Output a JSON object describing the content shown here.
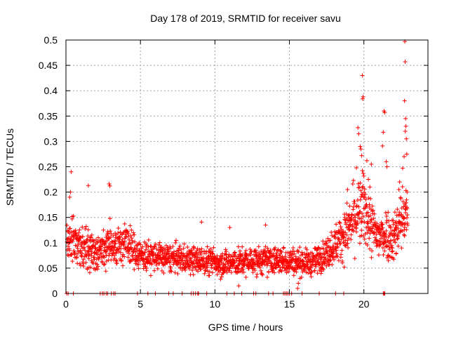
{
  "chart_data": {
    "type": "scatter",
    "title": "Day 178 of 2019, SRMTID for receiver savu",
    "xlabel": "GPS time / hours",
    "ylabel": "SRMTID / TECUs",
    "xlim": [
      0,
      24.3
    ],
    "ylim": [
      0,
      0.5
    ],
    "grid": true,
    "marker": "+",
    "color": "#ff0000",
    "x_ticks": [
      0,
      5,
      10,
      15,
      20
    ],
    "x_tick_labels": [
      "0",
      "5",
      "10",
      "15",
      "20"
    ],
    "y_ticks": [
      0,
      0.05,
      0.1,
      0.15,
      0.2,
      0.25,
      0.3,
      0.35,
      0.4,
      0.45,
      0.5
    ],
    "y_tick_labels": [
      "0",
      "0.05",
      "0.1",
      "0.15",
      "0.2",
      "0.25",
      "0.3",
      "0.35",
      "0.4",
      "0.45",
      "0.5"
    ],
    "trend": [
      {
        "hour": 0.0,
        "center": 0.095,
        "spread": 0.03
      },
      {
        "hour": 0.5,
        "center": 0.11,
        "spread": 0.035
      },
      {
        "hour": 1.0,
        "center": 0.09,
        "spread": 0.035
      },
      {
        "hour": 2.0,
        "center": 0.08,
        "spread": 0.03
      },
      {
        "hour": 3.0,
        "center": 0.095,
        "spread": 0.03
      },
      {
        "hour": 4.0,
        "center": 0.1,
        "spread": 0.03
      },
      {
        "hour": 5.0,
        "center": 0.075,
        "spread": 0.025
      },
      {
        "hour": 7.0,
        "center": 0.07,
        "spread": 0.022
      },
      {
        "hour": 9.0,
        "center": 0.065,
        "spread": 0.022
      },
      {
        "hour": 11.0,
        "center": 0.06,
        "spread": 0.022
      },
      {
        "hour": 13.0,
        "center": 0.065,
        "spread": 0.022
      },
      {
        "hour": 15.0,
        "center": 0.065,
        "spread": 0.022
      },
      {
        "hour": 16.5,
        "center": 0.06,
        "spread": 0.02
      },
      {
        "hour": 17.5,
        "center": 0.08,
        "spread": 0.025
      },
      {
        "hour": 18.5,
        "center": 0.11,
        "spread": 0.035
      },
      {
        "hour": 19.5,
        "center": 0.15,
        "spread": 0.05
      },
      {
        "hour": 20.0,
        "center": 0.17,
        "spread": 0.06
      },
      {
        "hour": 20.5,
        "center": 0.13,
        "spread": 0.045
      },
      {
        "hour": 21.0,
        "center": 0.11,
        "spread": 0.04
      },
      {
        "hour": 21.5,
        "center": 0.12,
        "spread": 0.04
      },
      {
        "hour": 22.0,
        "center": 0.11,
        "spread": 0.04
      },
      {
        "hour": 22.5,
        "center": 0.15,
        "spread": 0.05
      },
      {
        "hour": 22.9,
        "center": 0.15,
        "spread": 0.05
      }
    ],
    "outliers": [
      {
        "x": 0.35,
        "y": 0.24
      },
      {
        "x": 0.3,
        "y": 0.2
      },
      {
        "x": 0.25,
        "y": 0.19
      },
      {
        "x": 1.5,
        "y": 0.213
      },
      {
        "x": 2.9,
        "y": 0.216
      },
      {
        "x": 2.95,
        "y": 0.212
      },
      {
        "x": 9.1,
        "y": 0.141
      },
      {
        "x": 11.0,
        "y": 0.13
      },
      {
        "x": 13.4,
        "y": 0.135
      },
      {
        "x": 15.6,
        "y": 0.02
      },
      {
        "x": 15.55,
        "y": 0.01
      },
      {
        "x": 11.6,
        "y": 0.015
      },
      {
        "x": 19.6,
        "y": 0.327
      },
      {
        "x": 19.65,
        "y": 0.315
      },
      {
        "x": 19.75,
        "y": 0.29
      },
      {
        "x": 19.8,
        "y": 0.285
      },
      {
        "x": 19.85,
        "y": 0.272
      },
      {
        "x": 19.9,
        "y": 0.43
      },
      {
        "x": 19.95,
        "y": 0.388
      },
      {
        "x": 19.92,
        "y": 0.384
      },
      {
        "x": 20.3,
        "y": 0.225
      },
      {
        "x": 20.4,
        "y": 0.21
      },
      {
        "x": 20.5,
        "y": 0.255
      },
      {
        "x": 21.35,
        "y": 0.36
      },
      {
        "x": 21.4,
        "y": 0.357
      },
      {
        "x": 21.3,
        "y": 0.318
      },
      {
        "x": 21.25,
        "y": 0.291
      },
      {
        "x": 21.5,
        "y": 0.26
      },
      {
        "x": 21.55,
        "y": 0.25
      },
      {
        "x": 22.75,
        "y": 0.497
      },
      {
        "x": 22.77,
        "y": 0.457
      },
      {
        "x": 22.73,
        "y": 0.38
      },
      {
        "x": 22.8,
        "y": 0.345
      },
      {
        "x": 22.82,
        "y": 0.33
      },
      {
        "x": 22.78,
        "y": 0.32
      },
      {
        "x": 22.85,
        "y": 0.305
      },
      {
        "x": 22.7,
        "y": 0.27
      },
      {
        "x": 22.88,
        "y": 0.275
      },
      {
        "x": 22.6,
        "y": 0.247
      },
      {
        "x": 22.9,
        "y": 0.2
      },
      {
        "x": 22.4,
        "y": 0.22
      },
      {
        "x": 22.35,
        "y": 0.205
      },
      {
        "x": 20.2,
        "y": 0.262
      },
      {
        "x": 19.5,
        "y": 0.248
      },
      {
        "x": 19.3,
        "y": 0.223
      },
      {
        "x": 18.9,
        "y": 0.205
      }
    ],
    "zero_points": [
      0.05,
      0.15,
      0.5,
      2.3,
      2.45,
      2.55,
      2.7,
      2.8,
      3.05,
      3.2,
      3.3,
      4.8,
      5.5,
      6.0,
      6.9,
      7.2,
      7.8,
      8.4,
      8.55,
      8.7,
      8.85,
      8.9,
      9.45,
      10.8,
      11.3,
      11.8,
      12.6,
      12.75,
      13.6,
      13.9,
      14.6,
      14.7,
      14.8,
      14.9,
      15.0,
      15.15,
      15.85,
      17.0,
      18.1,
      18.65,
      21.3,
      21.35,
      21.4
    ]
  }
}
